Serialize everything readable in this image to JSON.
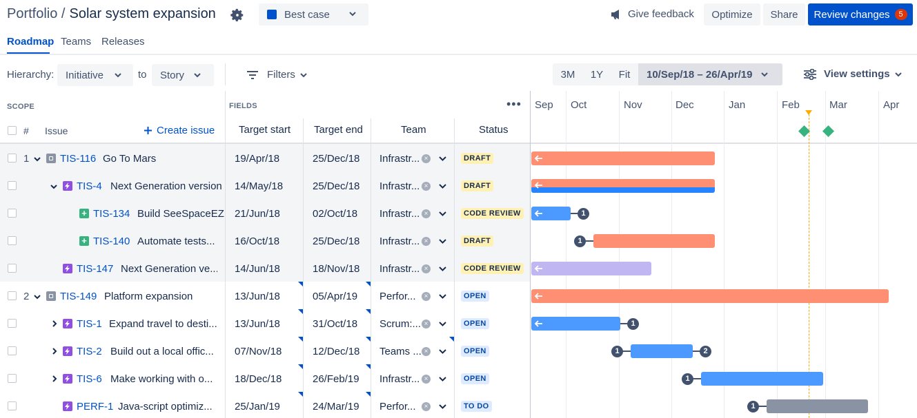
{
  "header": {
    "breadcrumb": "Portfolio /",
    "title": "Solar system expansion",
    "scenario": "Best case",
    "scenario_color": "#0052cc",
    "feedback": "Give feedback",
    "optimize": "Optimize",
    "share": "Share",
    "review": "Review changes",
    "review_count": "5"
  },
  "tabs": [
    "Roadmap",
    "Teams",
    "Releases"
  ],
  "toolbar": {
    "hierarchy_label": "Hierarchy:",
    "from": "Initiative",
    "to_label": "to",
    "to": "Story",
    "filters": "Filters",
    "zoom": [
      "3M",
      "1Y",
      "Fit"
    ],
    "date_range": "10/Sep/18 – 26/Apr/19",
    "view_settings": "View settings"
  },
  "table": {
    "scope_label": "SCOPE",
    "fields_label": "FIELDS",
    "hash": "#",
    "issue_label": "Issue",
    "create_issue": "Create issue",
    "columns": [
      "Target start",
      "Target end",
      "Team",
      "Status"
    ]
  },
  "timeline": {
    "months": [
      "Sep",
      "Oct",
      "Nov",
      "Dec",
      "Jan",
      "Feb",
      "Mar",
      "Apr"
    ]
  },
  "rows": [
    {
      "rank": "1",
      "key": "TIS-116",
      "summary": "Go To Mars",
      "type": "initiative",
      "start": "19/Apr/18",
      "end": "25/Dec/18",
      "team": "Infrastr...",
      "status": "DRAFT"
    },
    {
      "rank": "",
      "key": "TIS-4",
      "summary": "Next Generation version o",
      "type": "epic",
      "start": "14/May/18",
      "end": "25/Dec/18",
      "team": "Infrastr...",
      "status": "DRAFT"
    },
    {
      "rank": "",
      "key": "TIS-134",
      "summary": "Build SeeSpaceEZ t",
      "type": "story",
      "start": "21/Jun/18",
      "end": "02/Oct/18",
      "team": "Infrastr...",
      "status": "CODE REVIEW",
      "dep_out": "1"
    },
    {
      "rank": "",
      "key": "TIS-140",
      "summary": "Automate tests...",
      "type": "story",
      "start": "16/Oct/18",
      "end": "25/Dec/18",
      "team": "Infrastr...",
      "status": "DRAFT",
      "dep_in": "1"
    },
    {
      "rank": "",
      "key": "TIS-147",
      "summary": "Next Generation ve...",
      "type": "epic",
      "start": "14/Jun/18",
      "end": "18/Nov/18",
      "team": "Infrastr...",
      "status": "CODE REVIEW"
    },
    {
      "rank": "2",
      "key": "TIS-149",
      "summary": "Platform expansion",
      "type": "initiative",
      "start": "13/Jun/18",
      "end": "05/Apr/19",
      "team": "Perfor...",
      "status": "OPEN"
    },
    {
      "rank": "",
      "key": "TIS-1",
      "summary": "Expand travel to desti...",
      "type": "epic",
      "start": "13/Jun/18",
      "end": "31/Oct/18",
      "team": "Scrum:...",
      "status": "OPEN",
      "dep_out": "1"
    },
    {
      "rank": "",
      "key": "TIS-2",
      "summary": "Build out a local offic...",
      "type": "epic",
      "start": "07/Nov/18",
      "end": "12/Dec/18",
      "team": "Teams ...",
      "status": "OPEN",
      "dep_in": "1",
      "dep_out": "2"
    },
    {
      "rank": "",
      "key": "TIS-6",
      "summary": "Make working with o...",
      "type": "epic",
      "start": "18/Dec/18",
      "end": "26/Feb/19",
      "team": "Infrastr...",
      "status": "OPEN",
      "dep_in": "1"
    },
    {
      "rank": "",
      "key": "PERF-1",
      "summary": "Java-script optimiz...",
      "type": "epic",
      "start": "25/Jan/19",
      "end": "24/Mar/19",
      "team": "Perfor...",
      "status": "TO DO",
      "dep_in": "1"
    }
  ],
  "colors": {
    "draft_bar": "#ff8f73",
    "review_bar_blue": "#4c9aff",
    "epic_bar": "#c0b6f2",
    "open_bar": "#4c9aff",
    "todo_bar": "#8993a4",
    "today_line": "#ffab00",
    "release_diamond": "#36b37e"
  }
}
